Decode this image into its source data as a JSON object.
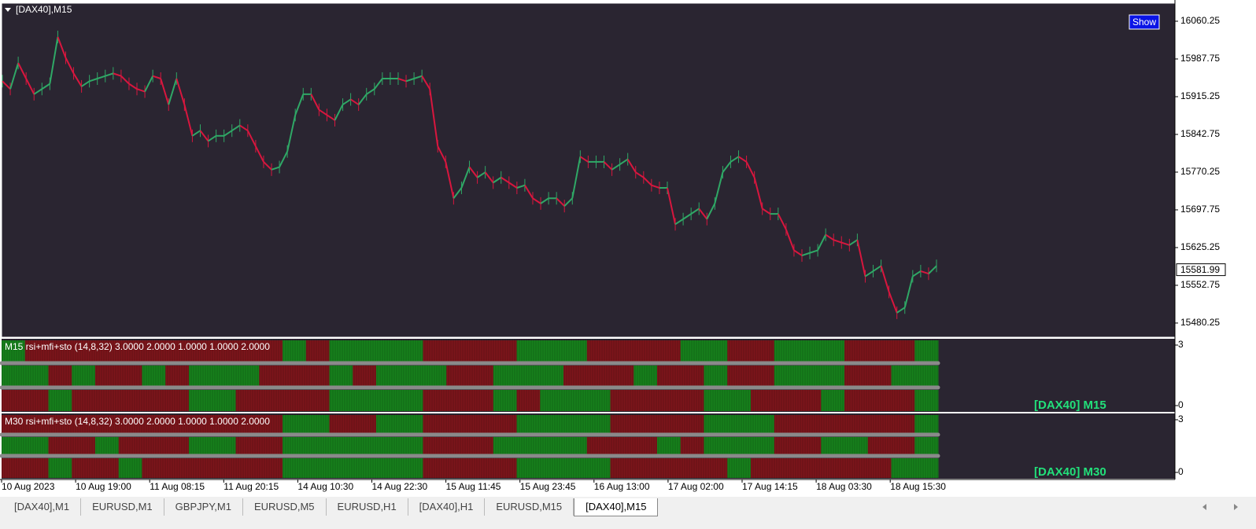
{
  "window_title": "[DAX40],M15",
  "button": "Show",
  "chart_data": {
    "type": "line",
    "up_color": "#2fa866",
    "down_color": "#d8163e",
    "values": [
      15945,
      15930,
      15980,
      15950,
      15920,
      15930,
      15940,
      16030,
      15990,
      15960,
      15935,
      15945,
      15950,
      15955,
      15960,
      15955,
      15940,
      15930,
      15925,
      15955,
      15950,
      15900,
      15950,
      15900,
      15840,
      15850,
      15830,
      15840,
      15840,
      15850,
      15860,
      15850,
      15820,
      15790,
      15775,
      15780,
      15810,
      15880,
      15920,
      15920,
      15890,
      15880,
      15870,
      15900,
      15910,
      15900,
      15920,
      15930,
      15950,
      15950,
      15950,
      15945,
      15950,
      15955,
      15930,
      15820,
      15790,
      15720,
      15740,
      15780,
      15760,
      15770,
      15750,
      15760,
      15750,
      15740,
      15745,
      15720,
      15710,
      15720,
      15720,
      15705,
      15720,
      15800,
      15790,
      15790,
      15790,
      15775,
      15785,
      15795,
      15770,
      15760,
      15745,
      15740,
      15740,
      15670,
      15680,
      15690,
      15700,
      15680,
      15710,
      15770,
      15790,
      15800,
      15790,
      15760,
      15700,
      15690,
      15690,
      15660,
      15620,
      15610,
      15615,
      15620,
      15650,
      15640,
      15635,
      15630,
      15640,
      15570,
      15580,
      15590,
      15540,
      15500,
      15510,
      15570,
      15580,
      15575,
      15590
    ],
    "ylim": [
      15453,
      16095
    ],
    "yticks": [
      15480.25,
      15552.75,
      15625.25,
      15697.75,
      15770.25,
      15842.75,
      15915.25,
      15987.75,
      16060.25
    ],
    "current_price": 15581.99
  },
  "indicator_colors": {
    "on": "#17801c",
    "off": "#7c151b"
  },
  "indicators": [
    {
      "label": "M15 rsi+mfi+sto (14,8,32) 3.0000 2.0000 1.0000 1.0000 2.0000",
      "tag": "[DAX40] M15",
      "ylim": [
        0,
        3
      ],
      "yticks": [
        0,
        3
      ],
      "rows": [
        [
          1,
          0,
          0,
          0,
          0,
          0,
          0,
          0,
          0,
          0,
          0,
          0,
          1,
          0,
          1,
          1,
          1,
          1,
          0,
          0,
          0,
          0,
          1,
          1,
          1,
          0,
          0,
          0,
          0,
          1,
          1,
          0,
          0,
          1,
          1,
          1,
          0,
          0,
          0,
          1
        ],
        [
          1,
          1,
          0,
          1,
          0,
          0,
          1,
          0,
          1,
          1,
          1,
          0,
          0,
          0,
          1,
          0,
          1,
          1,
          1,
          0,
          0,
          1,
          1,
          1,
          0,
          0,
          0,
          1,
          0,
          0,
          1,
          0,
          0,
          1,
          1,
          1,
          0,
          0,
          1,
          1
        ],
        [
          0,
          0,
          1,
          0,
          0,
          0,
          0,
          0,
          1,
          1,
          0,
          0,
          0,
          0,
          1,
          1,
          1,
          1,
          0,
          0,
          0,
          1,
          0,
          1,
          1,
          1,
          0,
          0,
          0,
          0,
          1,
          1,
          0,
          0,
          0,
          1,
          0,
          0,
          0,
          1
        ]
      ]
    },
    {
      "label": "M30 rsi+mfi+sto (14,8,32) 3.0000 2.0000 1.0000 1.0000 2.0000",
      "tag": "[DAX40] M30",
      "ylim": [
        0,
        3
      ],
      "yticks": [
        0,
        3
      ],
      "rows": [
        [
          0,
          0,
          0,
          0,
          0,
          0,
          0,
          0,
          0,
          0,
          0,
          0,
          1,
          1,
          0,
          0,
          1,
          1,
          0,
          0,
          0,
          0,
          1,
          1,
          1,
          1,
          0,
          0,
          0,
          0,
          1,
          1,
          1,
          0,
          0,
          0,
          0,
          0,
          0,
          1
        ],
        [
          1,
          1,
          0,
          0,
          1,
          0,
          0,
          0,
          1,
          1,
          0,
          0,
          1,
          1,
          1,
          1,
          1,
          1,
          0,
          0,
          0,
          1,
          1,
          1,
          1,
          0,
          0,
          0,
          1,
          0,
          1,
          1,
          1,
          0,
          0,
          1,
          1,
          0,
          0,
          1
        ],
        [
          0,
          0,
          1,
          0,
          0,
          1,
          0,
          0,
          0,
          0,
          0,
          0,
          1,
          1,
          1,
          1,
          1,
          1,
          0,
          0,
          0,
          0,
          1,
          1,
          1,
          1,
          0,
          0,
          0,
          0,
          0,
          1,
          0,
          0,
          0,
          0,
          0,
          0,
          1,
          1
        ]
      ]
    }
  ],
  "time_labels": [
    "10 Aug 2023",
    "10 Aug 19:00",
    "11 Aug 08:15",
    "11 Aug 20:15",
    "14 Aug 10:30",
    "14 Aug 22:30",
    "15 Aug 11:45",
    "15 Aug 23:45",
    "16 Aug 13:00",
    "17 Aug 02:00",
    "17 Aug 14:15",
    "18 Aug 03:30",
    "18 Aug 15:30"
  ],
  "tabs": [
    "[DAX40],M1",
    "EURUSD,M1",
    "GBPJPY,M1",
    "EURUSD,M5",
    "EURUSD,H1",
    "[DAX40],H1",
    "EURUSD,M15",
    "[DAX40],M15"
  ],
  "active_tab": 7
}
